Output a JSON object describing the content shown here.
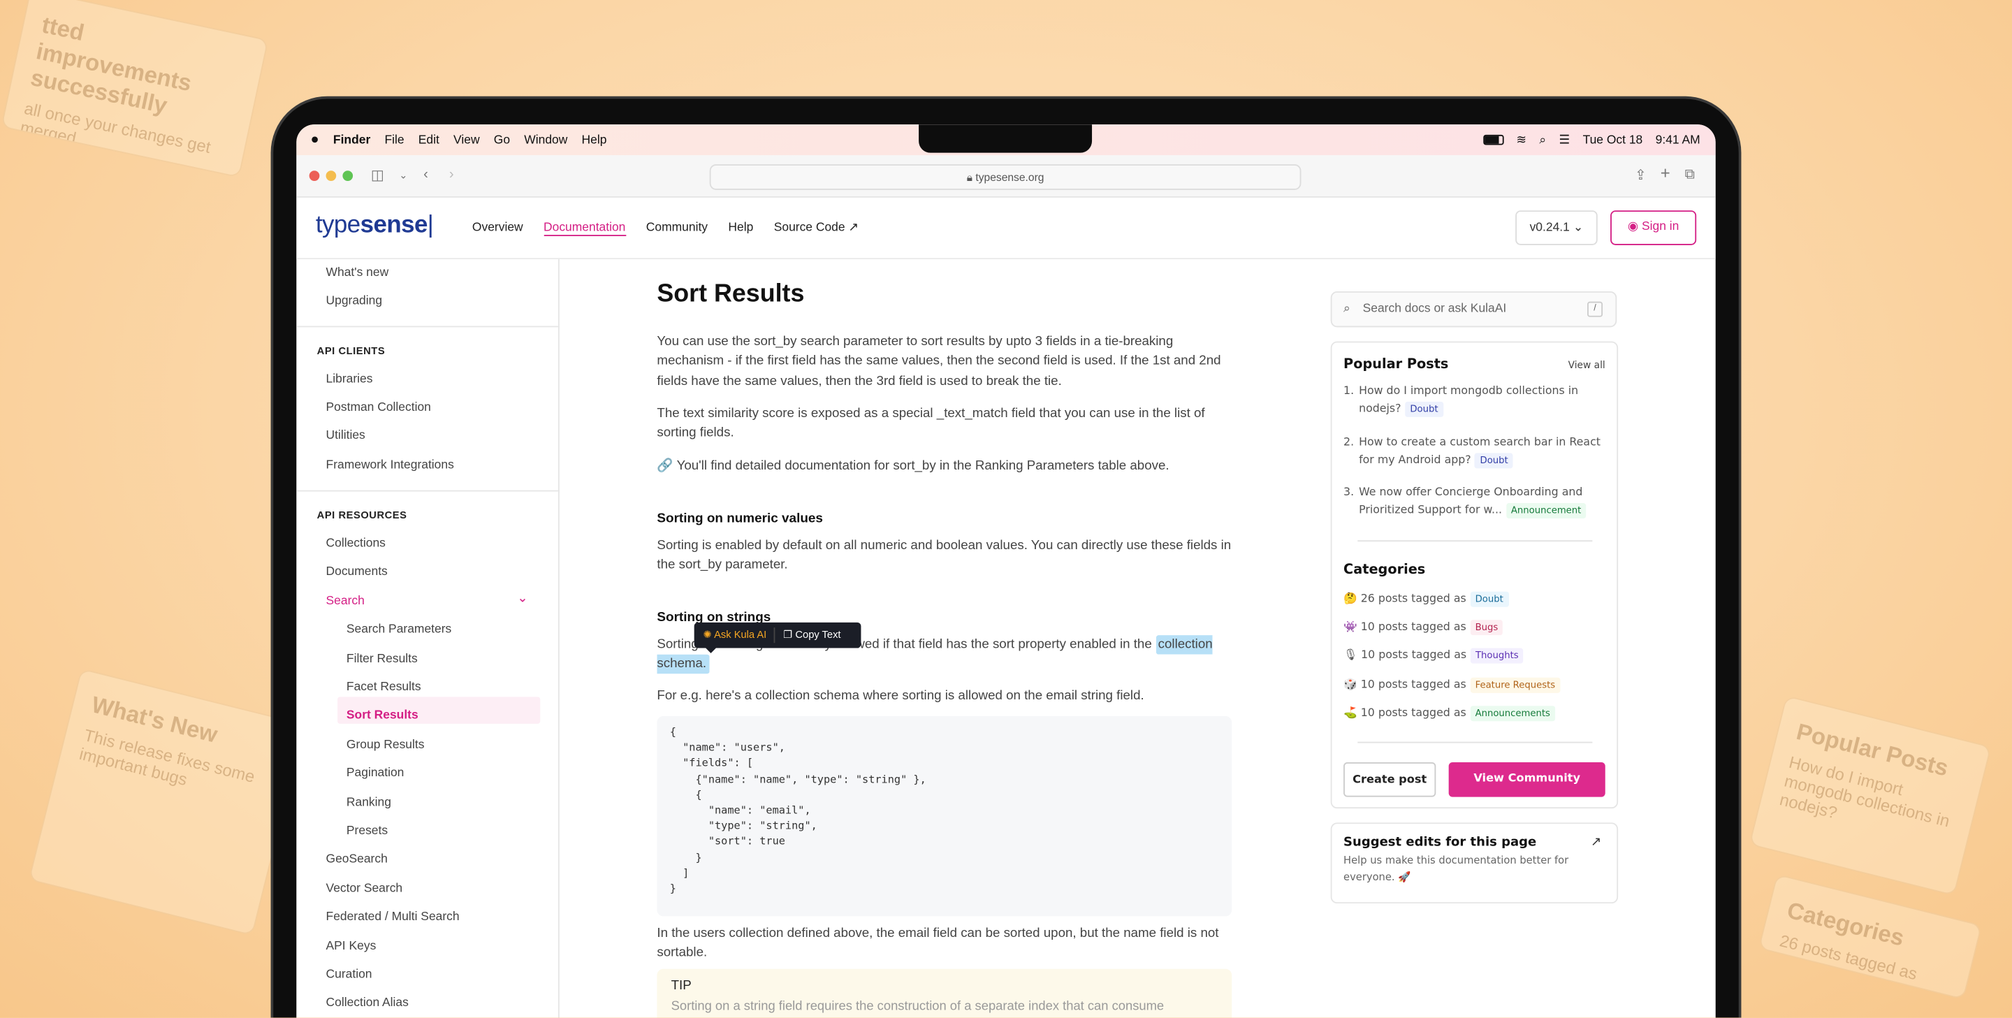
{
  "background": {
    "cards": [
      {
        "title": "tted improvements successfully",
        "text": "all once your changes get merged"
      },
      {
        "title": "What's New",
        "text": "This release fixes some important bugs"
      },
      {
        "title": "Popular Posts",
        "text": "How do I import mongodb collections in nodejs?"
      },
      {
        "title": "Categories",
        "text": "26 posts tagged as"
      }
    ]
  },
  "menubar": {
    "items": [
      "Finder",
      "File",
      "Edit",
      "View",
      "Go",
      "Window",
      "Help"
    ],
    "date": "Tue Oct 18",
    "time": "9:41 AM"
  },
  "browser": {
    "url": "typesense.org"
  },
  "header": {
    "logo_light": "type",
    "logo_bold": "sense",
    "nav": [
      "Overview",
      "Documentation",
      "Community",
      "Help",
      "Source Code"
    ],
    "active_nav": "Documentation",
    "version": "v0.24.1",
    "signin": "Sign in"
  },
  "sidebar": {
    "top": [
      "What's new",
      "Upgrading"
    ],
    "api_clients_heading": "API CLIENTS",
    "api_clients": [
      "Libraries",
      "Postman Collection",
      "Utilities",
      "Framework Integrations"
    ],
    "api_resources_heading": "API RESOURCES",
    "resources": [
      "Collections",
      "Documents",
      "Search"
    ],
    "search_children": [
      "Search Parameters",
      "Filter Results",
      "Facet Results",
      "Sort Results",
      "Group Results",
      "Pagination",
      "Ranking",
      "Presets"
    ],
    "more": [
      "GeoSearch",
      "Vector Search",
      "Federated / Multi Search",
      "API Keys",
      "Curation",
      "Collection Alias"
    ],
    "active": "Sort Results"
  },
  "main": {
    "title": "Sort Results",
    "p1": "You can use the sort_by search parameter to sort results by upto 3 fields in a tie-breaking mechanism - if the first field has the same values, then the second field is used. If the 1st and 2nd fields have the same values, then the 3rd field is used to break the tie.",
    "p2": "The text similarity score is exposed as a special _text_match field that you can use in the list of sorting fields.",
    "p3": "🔗 You'll find detailed documentation for sort_by in the Ranking Parameters table above.",
    "h_numeric": "Sorting on numeric values",
    "p_numeric": "Sorting is enabled by default on all numeric and boolean values. You can directly use these fields in the sort_by parameter.",
    "h_strings": "Sorting on strings",
    "p_strings": "Sorting on a string field is only allowed if that field has the sort property enabled in the",
    "p_strings_selected": "collection schema.",
    "tooltip": {
      "ask": "Ask Kula AI",
      "copy": "Copy Text"
    },
    "p_eg": "For e.g. here's a collection schema where sorting is allowed on the email string field.",
    "code": "{\n  \"name\": \"users\",\n  \"fields\": [\n    {\"name\": \"name\", \"type\": \"string\" },\n    {\n      \"name\": \"email\",\n      \"type\": \"string\",\n      \"sort\": true\n    }\n  ]\n}",
    "p_after": "In the users collection defined above, the email field can be sorted upon, but the name field is not sortable.",
    "tip_title": "TIP",
    "tip_text": "Sorting on a string field requires the construction of a separate index that can consume"
  },
  "right": {
    "search_placeholder": "Search docs or ask KulaAI",
    "search_shortcut": "/",
    "popular_title": "Popular Posts",
    "view_all": "View all",
    "posts": [
      {
        "n": "1.",
        "text": "How do I import mongodb collections in nodejs?",
        "tag": "Doubt"
      },
      {
        "n": "2.",
        "text": "How to create a custom search bar in React for my Android app?",
        "tag": "Doubt"
      },
      {
        "n": "3.",
        "text": "We now offer Concierge Onboarding and Prioritized Support for w...",
        "tag": "Announcement"
      }
    ],
    "categories_title": "Categories",
    "categories": [
      {
        "emoji": "🤔",
        "text": "26 posts tagged as",
        "tag": "Doubt"
      },
      {
        "emoji": "👾",
        "text": "10 posts tagged as",
        "tag": "Bugs"
      },
      {
        "emoji": "🎙",
        "text": "10 posts tagged as",
        "tag": "Thoughts"
      },
      {
        "emoji": "🎲",
        "text": "10 posts tagged as",
        "tag": "Feature Requests"
      },
      {
        "emoji": "⛳",
        "text": "10 posts tagged as",
        "tag": "Announcements"
      }
    ],
    "create_post": "Create post",
    "view_community": "View Community",
    "suggest_title": "Suggest edits for this page",
    "suggest_text": "Help us make this documentation better for everyone. 🚀"
  },
  "colors": {
    "accent": "#d41f85",
    "logo": "#1f3a93",
    "selection": "#b7e0f7"
  }
}
